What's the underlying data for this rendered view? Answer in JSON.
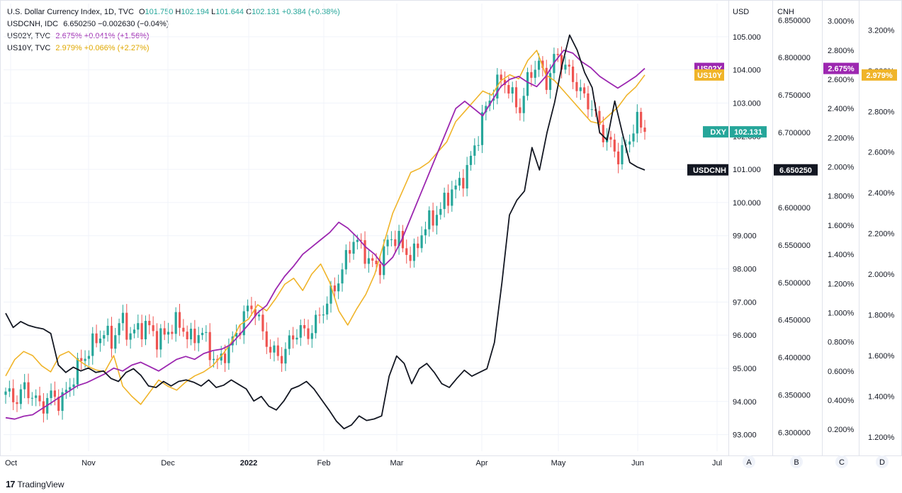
{
  "legend": {
    "dxy": {
      "name": "U.S. Dollar Currency Index, 1D, TVC",
      "o_label": "O",
      "o": "101.750",
      "h_label": "H",
      "h": "102.194",
      "l_label": "L",
      "l": "101.644",
      "c_label": "C",
      "c": "102.131",
      "chg": "+0.384 (+0.38%)",
      "color": "#26a69a"
    },
    "usdcnh": {
      "name": "USDCNH, IDC",
      "value": "6.650250",
      "chg": "−0.002630 (−0.04%)",
      "color": "#131722"
    },
    "us02y": {
      "name": "US02Y, TVC",
      "value": "2.675%",
      "chg": "+0.041% (+1.56%)",
      "color": "#9c27b0"
    },
    "us10y": {
      "name": "US10Y, TVC",
      "value": "2.979%",
      "chg": "+0.066% (+2.27%)",
      "color": "#f0b429"
    }
  },
  "axes": {
    "a_title": "USD",
    "b_title": "CNH",
    "letters": [
      "A",
      "B",
      "C",
      "D"
    ]
  },
  "tags": {
    "us02y_label": "US02Y",
    "us02y_value": "2.675%",
    "us10y_label": "US10Y",
    "us10y_value": "2.979%",
    "dxy_label": "DXY",
    "dxy_value": "102.131",
    "usdcnh_label": "USDCNH",
    "usdcnh_value": "6.650250"
  },
  "colors": {
    "up": "#26a69a",
    "down": "#ef5350",
    "us02y": "#9c27b0",
    "us10y": "#f0b429",
    "usdcnh": "#131722"
  },
  "branding": {
    "logo": "17",
    "name": "TradingView"
  },
  "chart_data": {
    "type": "line",
    "x_labels": [
      "Oct",
      "Nov",
      "Dec",
      "2022",
      "Feb",
      "Mar",
      "Apr",
      "May",
      "Jun",
      "Jul"
    ],
    "axis_usd": {
      "range": [
        92.5,
        106.0
      ],
      "ticks": [
        "93.000",
        "94.000",
        "95.000",
        "96.000",
        "97.000",
        "98.000",
        "99.000",
        "100.000",
        "101.000",
        "102.000",
        "103.000",
        "104.000",
        "105.000"
      ]
    },
    "axis_cnh": {
      "range": [
        6.275,
        6.872
      ],
      "ticks": [
        "6.300000",
        "6.350000",
        "6.400000",
        "6.450000",
        "6.500000",
        "6.550000",
        "6.600000",
        "6.650000",
        "6.700000",
        "6.750000",
        "6.800000",
        "6.850000"
      ]
    },
    "axis_c": {
      "range": [
        0.05,
        3.12
      ],
      "ticks": [
        "0.200%",
        "0.400%",
        "0.600%",
        "0.800%",
        "1.000%",
        "1.200%",
        "1.400%",
        "1.600%",
        "1.800%",
        "2.000%",
        "2.200%",
        "2.400%",
        "2.600%",
        "2.800%",
        "3.000%"
      ]
    },
    "axis_d": {
      "range": [
        1.13,
        3.33
      ],
      "ticks": [
        "1.200%",
        "1.400%",
        "1.600%",
        "1.800%",
        "2.000%",
        "2.200%",
        "2.400%",
        "2.600%",
        "2.800%",
        "3.000%",
        "3.200%"
      ]
    },
    "series": [
      {
        "name": "U.S. Dollar Currency Index",
        "type": "candlestick",
        "axis": "A",
        "close_anchors": [
          94.3,
          94.0,
          94.4,
          94.2,
          93.8,
          94.2,
          94.0,
          94.3,
          95.0,
          95.4,
          95.8,
          96.1,
          95.8,
          96.5,
          96.0,
          96.2,
          96.3,
          95.9,
          96.0,
          96.4,
          96.2,
          95.8,
          96.2,
          95.5,
          95.1,
          95.6,
          96.0,
          96.7,
          96.9,
          96.0,
          95.5,
          95.3,
          95.8,
          96.2,
          96.0,
          96.4,
          96.9,
          97.4,
          98.0,
          98.9,
          98.7,
          98.2,
          98.0,
          98.8,
          99.0,
          98.5,
          98.4,
          99.2,
          99.5,
          99.8,
          100.3,
          100.5,
          101.0,
          101.8,
          102.8,
          103.4,
          103.8,
          103.2,
          102.8,
          103.9,
          104.2,
          103.6,
          104.5,
          104.1,
          103.7,
          103.2,
          102.9,
          102.2,
          101.8,
          101.4,
          101.7,
          102.5,
          102.131
        ]
      },
      {
        "name": "USDCNH",
        "type": "line",
        "axis": "B",
        "values": [
          6.459,
          6.44,
          6.448,
          6.443,
          6.44,
          6.438,
          6.432,
          6.39,
          6.38,
          6.387,
          6.382,
          6.386,
          6.38,
          6.382,
          6.372,
          6.368,
          6.38,
          6.385,
          6.376,
          6.362,
          6.36,
          6.368,
          6.362,
          6.368,
          6.37,
          6.367,
          6.362,
          6.37,
          6.36,
          6.363,
          6.37,
          6.364,
          6.358,
          6.342,
          6.348,
          6.335,
          6.33,
          6.342,
          6.358,
          6.362,
          6.368,
          6.358,
          6.344,
          6.33,
          6.315,
          6.305,
          6.31,
          6.322,
          6.316,
          6.318,
          6.322,
          6.375,
          6.402,
          6.392,
          6.365,
          6.385,
          6.392,
          6.38,
          6.365,
          6.36,
          6.372,
          6.383,
          6.375,
          6.38,
          6.385,
          6.42,
          6.5,
          6.59,
          6.61,
          6.622,
          6.68,
          6.65,
          6.7,
          6.74,
          6.79,
          6.83,
          6.81,
          6.78,
          6.76,
          6.7,
          6.69,
          6.742,
          6.7,
          6.66,
          6.654,
          6.65
        ]
      },
      {
        "name": "US02Y",
        "type": "line",
        "axis": "C",
        "values": [
          0.28,
          0.27,
          0.29,
          0.3,
          0.34,
          0.38,
          0.42,
          0.46,
          0.5,
          0.52,
          0.55,
          0.58,
          0.62,
          0.6,
          0.64,
          0.66,
          0.63,
          0.6,
          0.64,
          0.68,
          0.7,
          0.68,
          0.72,
          0.74,
          0.75,
          0.78,
          0.85,
          0.92,
          1.0,
          1.05,
          1.16,
          1.25,
          1.32,
          1.4,
          1.45,
          1.5,
          1.55,
          1.62,
          1.58,
          1.52,
          1.45,
          1.4,
          1.32,
          1.38,
          1.5,
          1.65,
          1.8,
          1.95,
          2.1,
          2.25,
          2.4,
          2.45,
          2.4,
          2.35,
          2.45,
          2.55,
          2.6,
          2.62,
          2.58,
          2.55,
          2.62,
          2.72,
          2.8,
          2.78,
          2.72,
          2.68,
          2.62,
          2.58,
          2.54,
          2.58,
          2.62,
          2.675
        ]
      },
      {
        "name": "US10Y",
        "type": "line",
        "axis": "D",
        "values": [
          1.5,
          1.58,
          1.62,
          1.6,
          1.55,
          1.52,
          1.6,
          1.62,
          1.58,
          1.55,
          1.53,
          1.52,
          1.6,
          1.45,
          1.4,
          1.36,
          1.42,
          1.48,
          1.45,
          1.43,
          1.47,
          1.5,
          1.52,
          1.55,
          1.6,
          1.66,
          1.75,
          1.78,
          1.85,
          1.82,
          1.88,
          1.95,
          1.98,
          1.92,
          2.0,
          2.05,
          1.96,
          1.82,
          1.75,
          1.83,
          1.9,
          2.0,
          2.15,
          2.3,
          2.4,
          2.5,
          2.52,
          2.55,
          2.6,
          2.65,
          2.75,
          2.8,
          2.85,
          2.9,
          2.88,
          2.95,
          2.98,
          2.96,
          3.05,
          3.1,
          2.98,
          2.95,
          2.9,
          2.85,
          2.8,
          2.75,
          2.74,
          2.78,
          2.82,
          2.88,
          2.92,
          2.979
        ]
      }
    ]
  }
}
